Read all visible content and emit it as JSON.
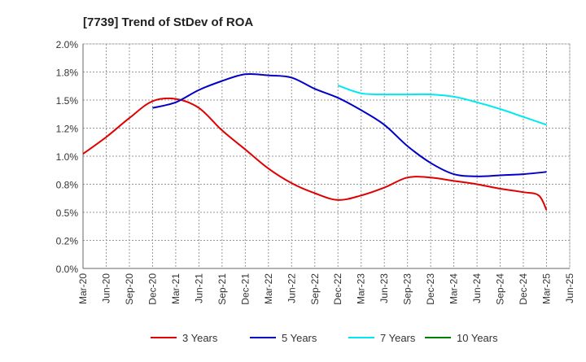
{
  "chart_data": {
    "type": "line",
    "title": "[7739]  Trend of StDev of ROA",
    "xlabel": "",
    "ylabel": "",
    "x_ticks": [
      "Mar-20",
      "Jun-20",
      "Sep-20",
      "Dec-20",
      "Mar-21",
      "Jun-21",
      "Sep-21",
      "Dec-21",
      "Mar-22",
      "Jun-22",
      "Sep-22",
      "Dec-22",
      "Mar-23",
      "Jun-23",
      "Sep-23",
      "Dec-23",
      "Mar-24",
      "Jun-24",
      "Sep-24",
      "Dec-24",
      "Mar-25",
      "Jun-25"
    ],
    "y_ticks": [
      "0.0%",
      "0.2%",
      "0.5%",
      "0.8%",
      "1.0%",
      "1.2%",
      "1.5%",
      "1.8%",
      "2.0%"
    ],
    "y_tick_values": [
      0,
      0.25,
      0.5,
      0.75,
      1.0,
      1.25,
      1.5,
      1.75,
      2.0
    ],
    "ylim": [
      0,
      2.0
    ],
    "grid": true,
    "legend_position": "bottom",
    "series": [
      {
        "name": "3 Years",
        "color": "#e00000",
        "x": [
          "Mar-20",
          "Jun-20",
          "Sep-20",
          "Dec-20",
          "Mar-21",
          "Jun-21",
          "Sep-21",
          "Dec-21",
          "Mar-22",
          "Jun-22",
          "Sep-22",
          "Dec-22",
          "Mar-23",
          "Jun-23",
          "Sep-23",
          "Dec-23",
          "Mar-24",
          "Jun-24",
          "Sep-24",
          "Dec-24",
          "Feb-25",
          "Mar-25"
        ],
        "values": [
          1.02,
          1.17,
          1.34,
          1.49,
          1.51,
          1.43,
          1.23,
          1.06,
          0.89,
          0.76,
          0.67,
          0.61,
          0.65,
          0.72,
          0.81,
          0.81,
          0.78,
          0.75,
          0.71,
          0.68,
          0.65,
          0.52
        ]
      },
      {
        "name": "5 Years",
        "color": "#0000c8",
        "x": [
          "Dec-20",
          "Mar-21",
          "Jun-21",
          "Sep-21",
          "Dec-21",
          "Mar-22",
          "Jun-22",
          "Sep-22",
          "Dec-22",
          "Mar-23",
          "Jun-23",
          "Sep-23",
          "Dec-23",
          "Mar-24",
          "Jun-24",
          "Sep-24",
          "Dec-24",
          "Mar-25"
        ],
        "values": [
          1.43,
          1.48,
          1.59,
          1.67,
          1.73,
          1.72,
          1.7,
          1.6,
          1.52,
          1.41,
          1.28,
          1.09,
          0.94,
          0.84,
          0.82,
          0.83,
          0.84,
          0.86
        ]
      },
      {
        "name": "7 Years",
        "color": "#00e8f0",
        "x": [
          "Dec-22",
          "Mar-23",
          "Jun-23",
          "Sep-23",
          "Dec-23",
          "Mar-24",
          "Jun-24",
          "Sep-24",
          "Dec-24",
          "Mar-25"
        ],
        "values": [
          1.63,
          1.56,
          1.55,
          1.55,
          1.55,
          1.53,
          1.48,
          1.42,
          1.35,
          1.28
        ]
      },
      {
        "name": "10 Years",
        "color": "#008000",
        "x": [],
        "values": []
      }
    ]
  }
}
